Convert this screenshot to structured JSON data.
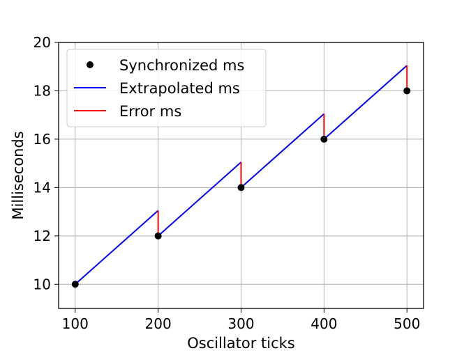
{
  "chart_data": {
    "type": "line",
    "xlabel": "Oscillator ticks",
    "ylabel": "Milliseconds",
    "xlim": [
      80,
      520
    ],
    "ylim": [
      9,
      20
    ],
    "xticks": [
      100,
      200,
      300,
      400,
      500
    ],
    "yticks": [
      10,
      12,
      14,
      16,
      18,
      20
    ],
    "grid": true,
    "legend_position": "upper-left",
    "series": [
      {
        "name": "Synchronized ms",
        "kind": "points",
        "color": "#000000",
        "x": [
          100,
          200,
          300,
          400,
          500
        ],
        "y": [
          10,
          12,
          14,
          16,
          18
        ]
      },
      {
        "name": "Extrapolated ms",
        "kind": "segments",
        "color": "#0000ff",
        "segments": [
          {
            "x": [
              100,
              200
            ],
            "y": [
              10,
              13.05
            ]
          },
          {
            "x": [
              200,
              300
            ],
            "y": [
              12,
              15.05
            ]
          },
          {
            "x": [
              300,
              400
            ],
            "y": [
              14,
              17.05
            ]
          },
          {
            "x": [
              400,
              500
            ],
            "y": [
              16,
              19.05
            ]
          }
        ]
      },
      {
        "name": "Error ms",
        "kind": "segments",
        "color": "#ff0000",
        "segments": [
          {
            "x": [
              200,
              200
            ],
            "y": [
              12,
              13.05
            ]
          },
          {
            "x": [
              300,
              300
            ],
            "y": [
              14,
              15.05
            ]
          },
          {
            "x": [
              400,
              400
            ],
            "y": [
              16,
              17.05
            ]
          },
          {
            "x": [
              500,
              500
            ],
            "y": [
              18,
              19.05
            ]
          }
        ]
      }
    ]
  }
}
